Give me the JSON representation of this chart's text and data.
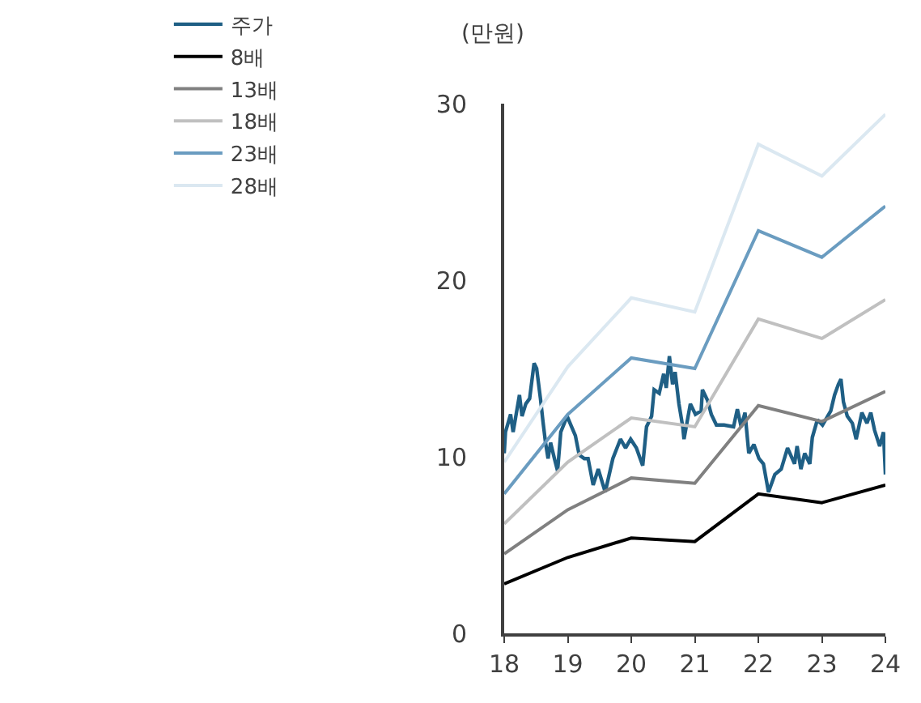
{
  "chart_data": {
    "type": "line",
    "ylabel": "(만원)",
    "xlim": [
      18,
      24
    ],
    "xticks": [
      18,
      19,
      20,
      21,
      22,
      23,
      24
    ],
    "ylim": [
      0,
      30
    ],
    "yticks": [
      0,
      10,
      20,
      30
    ],
    "legend": "top",
    "marker": "none",
    "line_style": "solid",
    "series": [
      {
        "name": "주가",
        "color": "#1f5f85",
        "x": [
          18.0,
          18.02,
          18.1,
          18.14,
          18.24,
          18.28,
          18.34,
          18.4,
          18.47,
          18.51,
          18.57,
          18.61,
          18.65,
          18.69,
          18.73,
          18.79,
          18.84,
          18.89,
          18.99,
          19.06,
          19.12,
          19.18,
          19.26,
          19.32,
          19.4,
          19.48,
          19.59,
          19.71,
          19.83,
          19.91,
          19.99,
          20.08,
          20.14,
          20.18,
          20.24,
          20.32,
          20.36,
          20.44,
          20.51,
          20.55,
          20.6,
          20.65,
          20.69,
          20.75,
          20.81,
          20.83,
          20.93,
          21.01,
          21.1,
          21.12,
          21.2,
          21.26,
          21.34,
          21.46,
          21.61,
          21.67,
          21.73,
          21.79,
          21.85,
          21.93,
          22.01,
          22.08,
          22.16,
          22.26,
          22.36,
          22.46,
          22.57,
          22.61,
          22.67,
          22.73,
          22.81,
          22.85,
          22.93,
          23.01,
          23.14,
          23.2,
          23.26,
          23.3,
          23.34,
          23.4,
          23.48,
          23.54,
          23.63,
          23.71,
          23.77,
          23.83,
          23.91,
          23.97,
          24.0
        ],
        "values": [
          10.2,
          11.4,
          12.4,
          11.4,
          13.5,
          12.3,
          13.0,
          13.3,
          15.3,
          15.0,
          13.3,
          12.0,
          10.8,
          9.9,
          10.8,
          9.9,
          9.2,
          11.4,
          12.3,
          11.7,
          11.2,
          10.1,
          9.9,
          9.9,
          8.4,
          9.3,
          8.0,
          9.9,
          11.0,
          10.5,
          11.0,
          10.5,
          9.9,
          9.5,
          11.7,
          12.3,
          13.8,
          13.6,
          14.7,
          13.9,
          15.7,
          14.1,
          14.8,
          13.0,
          11.7,
          11.0,
          13.0,
          12.4,
          12.6,
          13.8,
          13.2,
          12.4,
          11.8,
          11.8,
          11.7,
          12.7,
          11.7,
          12.5,
          10.2,
          10.7,
          9.9,
          9.6,
          8.0,
          9.0,
          9.3,
          10.5,
          9.6,
          10.6,
          9.3,
          10.2,
          9.6,
          11.1,
          12.1,
          11.8,
          12.6,
          13.5,
          14.1,
          14.4,
          13.1,
          12.3,
          11.9,
          11.0,
          12.5,
          11.9,
          12.5,
          11.5,
          10.6,
          11.4,
          9.0
        ]
      },
      {
        "name": "8배",
        "color": "#000000",
        "x": [
          18,
          19,
          20,
          21,
          22,
          23,
          24
        ],
        "values": [
          2.8,
          4.3,
          5.4,
          5.2,
          7.9,
          7.4,
          8.4
        ]
      },
      {
        "name": "13배",
        "color": "#808080",
        "x": [
          18,
          19,
          20,
          21,
          22,
          23,
          24
        ],
        "values": [
          4.5,
          7.0,
          8.8,
          8.5,
          12.9,
          12.0,
          13.7
        ]
      },
      {
        "name": "18배",
        "color": "#c0c0c0",
        "x": [
          18,
          19,
          20,
          21,
          22,
          23,
          24
        ],
        "values": [
          6.2,
          9.7,
          12.2,
          11.7,
          17.8,
          16.7,
          18.9
        ]
      },
      {
        "name": "23배",
        "color": "#6a9cc0",
        "x": [
          18,
          19,
          20,
          21,
          22,
          23,
          24
        ],
        "values": [
          7.9,
          12.4,
          15.6,
          15.0,
          22.8,
          21.3,
          24.2
        ]
      },
      {
        "name": "28배",
        "color": "#dbe8f1",
        "x": [
          18,
          19,
          20,
          21,
          22,
          23,
          24
        ],
        "values": [
          9.7,
          15.1,
          19.0,
          18.2,
          27.7,
          25.9,
          29.4
        ]
      }
    ]
  }
}
